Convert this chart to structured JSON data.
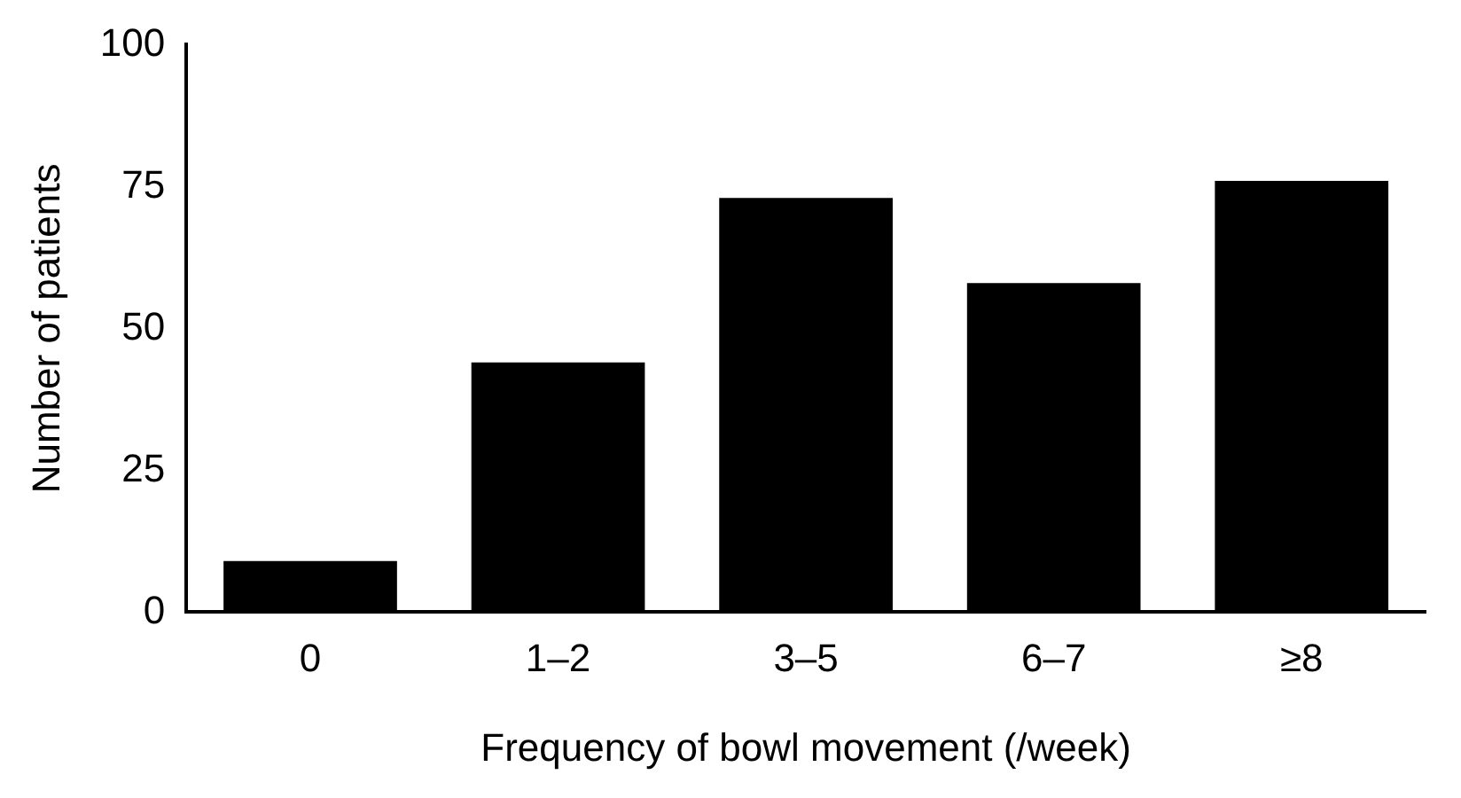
{
  "chart_data": {
    "type": "bar",
    "xlabel": "Frequency of bowl movement (/week)",
    "ylabel": "Number of patients",
    "categories": [
      "0",
      "1–2",
      "3–5",
      "6–7",
      "≥8"
    ],
    "values": [
      9,
      44,
      73,
      58,
      76
    ],
    "color": "#000000",
    "ylim": [
      0,
      100
    ],
    "yticks": [
      0,
      25,
      50,
      75,
      100
    ],
    "grid": false
  }
}
